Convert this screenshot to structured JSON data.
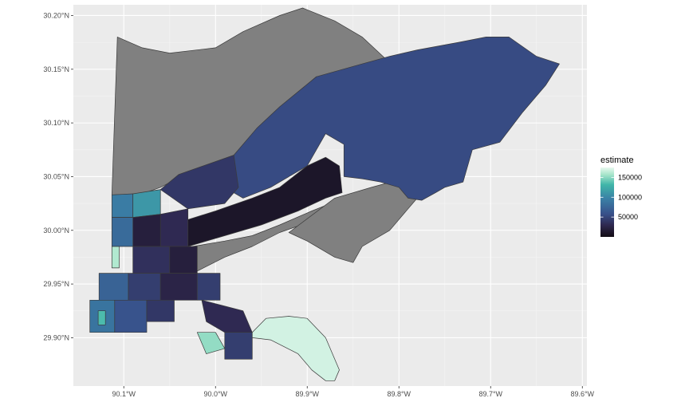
{
  "chart_data": {
    "type": "choropleth-map",
    "xlim": [
      -90.155,
      -89.595
    ],
    "ylim": [
      29.855,
      30.21
    ],
    "x_ticks": [
      {
        "value": -90.1,
        "label": "90.1°W"
      },
      {
        "value": -90.0,
        "label": "90.0°W"
      },
      {
        "value": -89.9,
        "label": "89.9°W"
      },
      {
        "value": -89.8,
        "label": "89.8°W"
      },
      {
        "value": -89.7,
        "label": "89.7°W"
      },
      {
        "value": -89.6,
        "label": "89.6°W"
      }
    ],
    "y_ticks": [
      {
        "value": 29.9,
        "label": "29.90°N"
      },
      {
        "value": 29.95,
        "label": "29.95°N"
      },
      {
        "value": 30.0,
        "label": "30.00°N"
      },
      {
        "value": 30.05,
        "label": "30.05°N"
      },
      {
        "value": 30.1,
        "label": "30.10°N"
      },
      {
        "value": 30.15,
        "label": "30.15°N"
      },
      {
        "value": 30.2,
        "label": "30.20°N"
      }
    ],
    "grid": true,
    "legend": {
      "title": "estimate",
      "position": "right",
      "range": [
        0,
        175000
      ],
      "ticks": [
        {
          "value": 50000,
          "label": "50000"
        },
        {
          "value": 100000,
          "label": "100000"
        },
        {
          "value": 150000,
          "label": "150000"
        }
      ],
      "palette": [
        "#120c14",
        "#2f2850",
        "#38508a",
        "#3a80a6",
        "#40b5a8",
        "#a8e6cb",
        "#e8f8ef"
      ]
    },
    "na_color": "#808080",
    "regions": [
      {
        "name": "lake-marsh-na",
        "estimate": null,
        "pts": [
          [
            -90.107,
            30.18
          ],
          [
            -90.08,
            30.17
          ],
          [
            -90.05,
            30.165
          ],
          [
            -90.0,
            30.17
          ],
          [
            -89.97,
            30.185
          ],
          [
            -89.93,
            30.2
          ],
          [
            -89.905,
            30.207
          ],
          [
            -89.87,
            30.195
          ],
          [
            -89.84,
            30.18
          ],
          [
            -89.815,
            30.16
          ],
          [
            -89.79,
            30.155
          ],
          [
            -89.755,
            30.15
          ],
          [
            -89.735,
            30.14
          ],
          [
            -89.73,
            30.12
          ],
          [
            -89.76,
            30.12
          ],
          [
            -89.8,
            30.095
          ],
          [
            -89.83,
            30.09
          ],
          [
            -89.86,
            30.1
          ],
          [
            -89.88,
            30.13
          ],
          [
            -89.89,
            30.143
          ],
          [
            -89.935,
            30.11
          ],
          [
            -89.96,
            30.08
          ],
          [
            -89.98,
            30.068
          ],
          [
            -90.01,
            30.055
          ],
          [
            -90.04,
            30.049
          ],
          [
            -90.06,
            30.04
          ],
          [
            -90.08,
            30.034
          ],
          [
            -90.113,
            30.033
          ]
        ]
      },
      {
        "name": "east-na",
        "estimate": null,
        "pts": [
          [
            -89.82,
            30.04
          ],
          [
            -89.85,
            30.025
          ],
          [
            -89.89,
            30.01
          ],
          [
            -89.93,
            29.998
          ],
          [
            -89.96,
            29.985
          ],
          [
            -89.99,
            29.975
          ],
          [
            -90.02,
            29.962
          ],
          [
            -90.025,
            29.985
          ],
          [
            -89.99,
            29.99
          ],
          [
            -89.96,
            29.995
          ],
          [
            -89.93,
            30.005
          ],
          [
            -89.895,
            30.018
          ],
          [
            -89.86,
            30.03
          ],
          [
            -89.83,
            30.04
          ]
        ]
      },
      {
        "name": "east-south-na",
        "estimate": null,
        "pts": [
          [
            -89.92,
            29.998
          ],
          [
            -89.9,
            29.99
          ],
          [
            -89.87,
            29.975
          ],
          [
            -89.85,
            29.97
          ],
          [
            -89.84,
            29.985
          ],
          [
            -89.81,
            30.0
          ],
          [
            -89.79,
            30.02
          ],
          [
            -89.775,
            30.035
          ],
          [
            -89.77,
            30.048
          ],
          [
            -89.8,
            30.047
          ],
          [
            -89.83,
            30.04
          ],
          [
            -89.87,
            30.03
          ]
        ]
      },
      {
        "name": "new-orleans-east",
        "estimate": 55000,
        "pts": [
          [
            -89.89,
            30.143
          ],
          [
            -89.84,
            30.155
          ],
          [
            -89.81,
            30.162
          ],
          [
            -89.78,
            30.168
          ],
          [
            -89.735,
            30.175
          ],
          [
            -89.705,
            30.18
          ],
          [
            -89.68,
            30.18
          ],
          [
            -89.65,
            30.162
          ],
          [
            -89.625,
            30.155
          ],
          [
            -89.64,
            30.135
          ],
          [
            -89.665,
            30.11
          ],
          [
            -89.69,
            30.082
          ],
          [
            -89.72,
            30.075
          ],
          [
            -89.73,
            30.045
          ],
          [
            -89.75,
            30.04
          ],
          [
            -89.76,
            30.035
          ],
          [
            -89.775,
            30.028
          ],
          [
            -89.79,
            30.03
          ],
          [
            -89.8,
            30.04
          ],
          [
            -89.82,
            30.045
          ],
          [
            -89.84,
            30.048
          ],
          [
            -89.86,
            30.05
          ],
          [
            -89.86,
            30.08
          ],
          [
            -89.88,
            30.09
          ],
          [
            -89.9,
            30.06
          ],
          [
            -89.94,
            30.04
          ],
          [
            -89.97,
            30.03
          ],
          [
            -89.99,
            30.04
          ],
          [
            -89.98,
            30.07
          ],
          [
            -89.955,
            30.095
          ],
          [
            -89.93,
            30.115
          ]
        ]
      },
      {
        "name": "lakefront-tract",
        "estimate": 40000,
        "pts": [
          [
            -89.98,
            30.07
          ],
          [
            -90.04,
            30.052
          ],
          [
            -90.06,
            30.038
          ],
          [
            -90.03,
            30.02
          ],
          [
            -89.99,
            30.025
          ],
          [
            -89.975,
            30.04
          ]
        ]
      },
      {
        "name": "lakefront-west-1",
        "estimate": 85000,
        "pts": [
          [
            -90.113,
            30.033
          ],
          [
            -90.09,
            30.034
          ],
          [
            -90.09,
            30.012
          ],
          [
            -90.113,
            30.012
          ]
        ]
      },
      {
        "name": "lakefront-west-2",
        "estimate": 100000,
        "pts": [
          [
            -90.09,
            30.034
          ],
          [
            -90.06,
            30.038
          ],
          [
            -90.06,
            30.015
          ],
          [
            -90.09,
            30.012
          ]
        ]
      },
      {
        "name": "chef-corridor",
        "estimate": 10000,
        "pts": [
          [
            -90.03,
            30.01
          ],
          [
            -90.0,
            30.018
          ],
          [
            -89.96,
            30.03
          ],
          [
            -89.93,
            30.04
          ],
          [
            -89.9,
            30.06
          ],
          [
            -89.88,
            30.068
          ],
          [
            -89.865,
            30.06
          ],
          [
            -89.862,
            30.035
          ],
          [
            -89.88,
            30.03
          ],
          [
            -89.91,
            30.018
          ],
          [
            -89.95,
            30.005
          ],
          [
            -89.99,
            29.995
          ],
          [
            -90.03,
            29.985
          ]
        ]
      },
      {
        "name": "gentilly-mid",
        "estimate": 30000,
        "pts": [
          [
            -90.06,
            30.015
          ],
          [
            -90.03,
            30.02
          ],
          [
            -90.03,
            29.985
          ],
          [
            -90.06,
            29.985
          ]
        ]
      },
      {
        "name": "city-park-east",
        "estimate": 20000,
        "pts": [
          [
            -90.09,
            30.012
          ],
          [
            -90.06,
            30.015
          ],
          [
            -90.06,
            29.985
          ],
          [
            -90.09,
            29.985
          ]
        ]
      },
      {
        "name": "metairie-border",
        "estimate": 75000,
        "pts": [
          [
            -90.113,
            30.012
          ],
          [
            -90.09,
            30.012
          ],
          [
            -90.09,
            29.985
          ],
          [
            -90.113,
            29.985
          ]
        ]
      },
      {
        "name": "lakeview-strip",
        "estimate": 150000,
        "pts": [
          [
            -90.113,
            29.985
          ],
          [
            -90.105,
            29.985
          ],
          [
            -90.105,
            29.965
          ],
          [
            -90.113,
            29.965
          ]
        ]
      },
      {
        "name": "mid-city",
        "estimate": 35000,
        "pts": [
          [
            -90.09,
            29.985
          ],
          [
            -90.05,
            29.985
          ],
          [
            -90.05,
            29.96
          ],
          [
            -90.09,
            29.96
          ]
        ]
      },
      {
        "name": "treme",
        "estimate": 20000,
        "pts": [
          [
            -90.05,
            29.985
          ],
          [
            -90.02,
            29.985
          ],
          [
            -90.02,
            29.96
          ],
          [
            -90.05,
            29.96
          ]
        ]
      },
      {
        "name": "uptown-a",
        "estimate": 70000,
        "pts": [
          [
            -90.127,
            29.96
          ],
          [
            -90.095,
            29.96
          ],
          [
            -90.095,
            29.935
          ],
          [
            -90.127,
            29.935
          ]
        ]
      },
      {
        "name": "uptown-b",
        "estimate": 45000,
        "pts": [
          [
            -90.095,
            29.96
          ],
          [
            -90.06,
            29.96
          ],
          [
            -90.06,
            29.935
          ],
          [
            -90.095,
            29.935
          ]
        ]
      },
      {
        "name": "central-city",
        "estimate": 25000,
        "pts": [
          [
            -90.06,
            29.96
          ],
          [
            -90.02,
            29.96
          ],
          [
            -90.02,
            29.935
          ],
          [
            -90.06,
            29.935
          ]
        ]
      },
      {
        "name": "bywater",
        "estimate": 45000,
        "pts": [
          [
            -90.02,
            29.96
          ],
          [
            -89.995,
            29.96
          ],
          [
            -89.995,
            29.935
          ],
          [
            -90.02,
            29.935
          ]
        ]
      },
      {
        "name": "riverbend",
        "estimate": 80000,
        "pts": [
          [
            -90.137,
            29.935
          ],
          [
            -90.11,
            29.935
          ],
          [
            -90.11,
            29.905
          ],
          [
            -90.137,
            29.905
          ]
        ]
      },
      {
        "name": "audubon",
        "estimate": 120000,
        "pts": [
          [
            -90.128,
            29.925
          ],
          [
            -90.12,
            29.925
          ],
          [
            -90.12,
            29.912
          ],
          [
            -90.128,
            29.912
          ]
        ]
      },
      {
        "name": "garden-district",
        "estimate": 60000,
        "pts": [
          [
            -90.11,
            29.935
          ],
          [
            -90.075,
            29.935
          ],
          [
            -90.075,
            29.905
          ],
          [
            -90.11,
            29.905
          ]
        ]
      },
      {
        "name": "irish-channel",
        "estimate": 40000,
        "pts": [
          [
            -90.075,
            29.935
          ],
          [
            -90.045,
            29.935
          ],
          [
            -90.045,
            29.915
          ],
          [
            -90.075,
            29.915
          ]
        ]
      },
      {
        "name": "lower-ninth",
        "estimate": 30000,
        "pts": [
          [
            -90.015,
            29.935
          ],
          [
            -89.97,
            29.925
          ],
          [
            -89.96,
            29.905
          ],
          [
            -89.99,
            29.905
          ],
          [
            -90.01,
            29.915
          ]
        ]
      },
      {
        "name": "algiers-point",
        "estimate": 140000,
        "pts": [
          [
            -90.02,
            29.905
          ],
          [
            -90.0,
            29.905
          ],
          [
            -89.99,
            29.89
          ],
          [
            -90.01,
            29.885
          ]
        ]
      },
      {
        "name": "algiers-east",
        "estimate": 45000,
        "pts": [
          [
            -89.99,
            29.905
          ],
          [
            -89.96,
            29.905
          ],
          [
            -89.96,
            29.88
          ],
          [
            -89.99,
            29.88
          ]
        ]
      },
      {
        "name": "english-turn",
        "estimate": 165000,
        "pts": [
          [
            -89.96,
            29.905
          ],
          [
            -89.945,
            29.918
          ],
          [
            -89.92,
            29.92
          ],
          [
            -89.9,
            29.918
          ],
          [
            -89.88,
            29.9
          ],
          [
            -89.865,
            29.87
          ],
          [
            -89.87,
            29.86
          ],
          [
            -89.88,
            29.86
          ],
          [
            -89.895,
            29.87
          ],
          [
            -89.91,
            29.885
          ],
          [
            -89.94,
            29.898
          ],
          [
            -89.96,
            29.9
          ]
        ]
      }
    ]
  }
}
